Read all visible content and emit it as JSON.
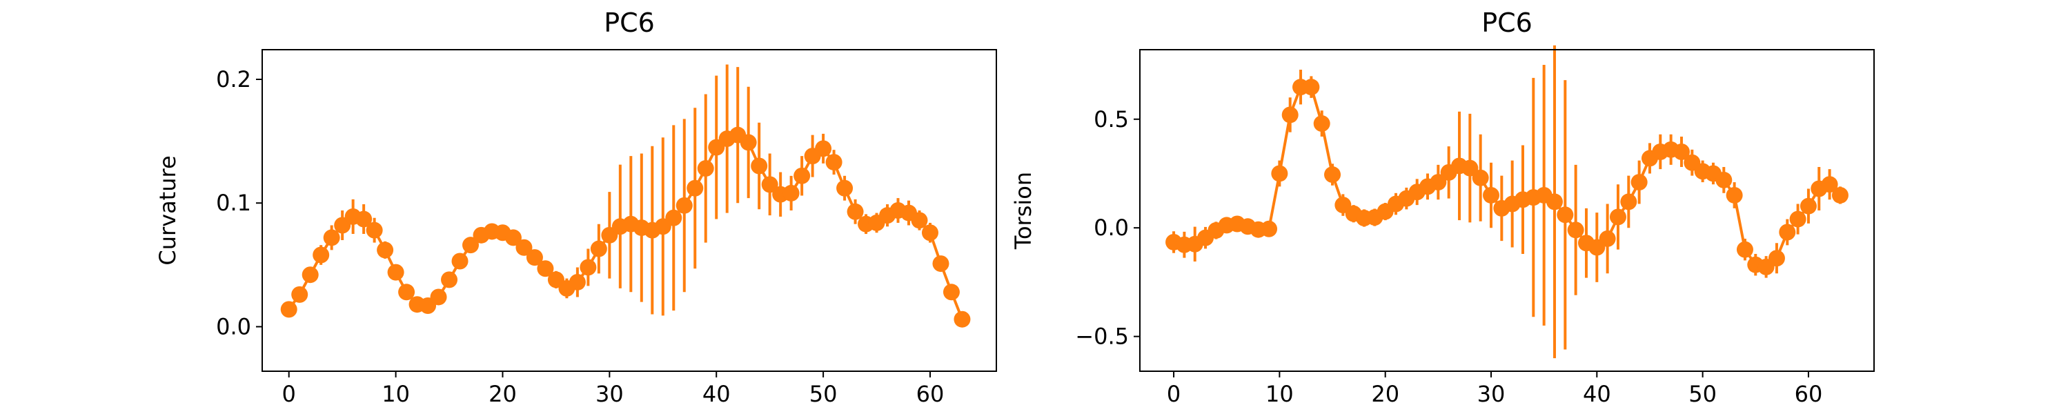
{
  "figure": {
    "series_color": "#ff7f0e"
  },
  "chart_data": [
    {
      "type": "line",
      "style": "errorbar-with-markers",
      "title": "PC6",
      "xlabel": "",
      "ylabel": "Curvature",
      "xlim": [
        -2.5,
        66.2
      ],
      "ylim": [
        -0.036,
        0.224
      ],
      "xticks": [
        0,
        10,
        20,
        30,
        40,
        50,
        60
      ],
      "yticks": [
        0.0,
        0.1,
        0.2
      ],
      "yticklabels": [
        "0.0",
        "0.1",
        "0.2"
      ],
      "grid": false,
      "legend": "none",
      "x": [
        0,
        1,
        2,
        3,
        4,
        5,
        6,
        7,
        8,
        9,
        10,
        11,
        12,
        13,
        14,
        15,
        16,
        17,
        18,
        19,
        20,
        21,
        22,
        23,
        24,
        25,
        26,
        27,
        28,
        29,
        30,
        31,
        32,
        33,
        34,
        35,
        36,
        37,
        38,
        39,
        40,
        41,
        42,
        43,
        44,
        45,
        46,
        47,
        48,
        49,
        50,
        51,
        52,
        53,
        54,
        55,
        56,
        57,
        58,
        59,
        60,
        61,
        62,
        63
      ],
      "values": [
        0.014,
        0.026,
        0.042,
        0.058,
        0.072,
        0.082,
        0.089,
        0.087,
        0.078,
        0.062,
        0.044,
        0.028,
        0.018,
        0.017,
        0.024,
        0.038,
        0.053,
        0.066,
        0.074,
        0.077,
        0.076,
        0.072,
        0.064,
        0.056,
        0.047,
        0.038,
        0.031,
        0.036,
        0.048,
        0.063,
        0.074,
        0.081,
        0.083,
        0.08,
        0.078,
        0.081,
        0.088,
        0.098,
        0.112,
        0.128,
        0.145,
        0.152,
        0.155,
        0.149,
        0.13,
        0.115,
        0.107,
        0.108,
        0.122,
        0.138,
        0.144,
        0.133,
        0.112,
        0.093,
        0.083,
        0.084,
        0.09,
        0.094,
        0.092,
        0.086,
        0.076,
        0.051,
        0.028,
        0.006
      ],
      "errors": [
        0.003,
        0.004,
        0.006,
        0.008,
        0.01,
        0.012,
        0.014,
        0.012,
        0.01,
        0.007,
        0.005,
        0.004,
        0.003,
        0.003,
        0.004,
        0.004,
        0.005,
        0.005,
        0.004,
        0.004,
        0.004,
        0.004,
        0.004,
        0.005,
        0.006,
        0.007,
        0.008,
        0.012,
        0.015,
        0.02,
        0.035,
        0.05,
        0.055,
        0.06,
        0.068,
        0.072,
        0.075,
        0.07,
        0.065,
        0.06,
        0.058,
        0.06,
        0.055,
        0.045,
        0.035,
        0.025,
        0.018,
        0.014,
        0.016,
        0.017,
        0.012,
        0.01,
        0.01,
        0.01,
        0.008,
        0.008,
        0.009,
        0.01,
        0.01,
        0.008,
        0.008,
        0.006,
        0.005,
        0.004
      ]
    },
    {
      "type": "line",
      "style": "errorbar-with-markers",
      "title": "PC6",
      "xlabel": "",
      "ylabel": "Torsion",
      "xlim": [
        -3.2,
        66.2
      ],
      "ylim": [
        -0.66,
        0.82
      ],
      "xticks": [
        0,
        10,
        20,
        30,
        40,
        50,
        60
      ],
      "yticks": [
        -0.5,
        0.0,
        0.5
      ],
      "yticklabels": [
        "−0.5",
        "0.0",
        "0.5"
      ],
      "grid": false,
      "legend": "none",
      "x": [
        0,
        1,
        2,
        3,
        4,
        5,
        6,
        7,
        8,
        9,
        10,
        11,
        12,
        13,
        14,
        15,
        16,
        17,
        18,
        19,
        20,
        21,
        22,
        23,
        24,
        25,
        26,
        27,
        28,
        29,
        30,
        31,
        32,
        33,
        34,
        35,
        36,
        37,
        38,
        39,
        40,
        41,
        42,
        43,
        44,
        45,
        46,
        47,
        48,
        49,
        50,
        51,
        52,
        53,
        54,
        55,
        56,
        57,
        58,
        59,
        60,
        61,
        62,
        63
      ],
      "values": [
        -0.066,
        -0.078,
        -0.075,
        -0.046,
        -0.012,
        0.012,
        0.018,
        0.006,
        -0.008,
        -0.005,
        0.25,
        0.52,
        0.648,
        0.648,
        0.48,
        0.245,
        0.105,
        0.065,
        0.045,
        0.048,
        0.075,
        0.11,
        0.135,
        0.165,
        0.19,
        0.21,
        0.255,
        0.285,
        0.275,
        0.23,
        0.15,
        0.09,
        0.11,
        0.13,
        0.14,
        0.15,
        0.12,
        0.06,
        -0.01,
        -0.07,
        -0.09,
        -0.05,
        0.05,
        0.12,
        0.21,
        0.32,
        0.35,
        0.36,
        0.35,
        0.3,
        0.26,
        0.25,
        0.22,
        0.15,
        -0.1,
        -0.17,
        -0.18,
        -0.14,
        -0.02,
        0.04,
        0.1,
        0.18,
        0.2,
        0.15
      ],
      "errors": [
        0.05,
        0.06,
        0.08,
        0.05,
        0.04,
        0.03,
        0.03,
        0.03,
        0.03,
        0.03,
        0.06,
        0.08,
        0.08,
        0.05,
        0.06,
        0.05,
        0.05,
        0.04,
        0.04,
        0.04,
        0.04,
        0.05,
        0.05,
        0.06,
        0.06,
        0.08,
        0.12,
        0.25,
        0.25,
        0.2,
        0.15,
        0.15,
        0.2,
        0.25,
        0.55,
        0.6,
        0.72,
        0.62,
        0.3,
        0.16,
        0.16,
        0.16,
        0.15,
        0.12,
        0.1,
        0.07,
        0.08,
        0.07,
        0.07,
        0.06,
        0.05,
        0.05,
        0.06,
        0.06,
        0.05,
        0.05,
        0.05,
        0.07,
        0.06,
        0.07,
        0.08,
        0.1,
        0.07,
        0.04
      ]
    }
  ]
}
